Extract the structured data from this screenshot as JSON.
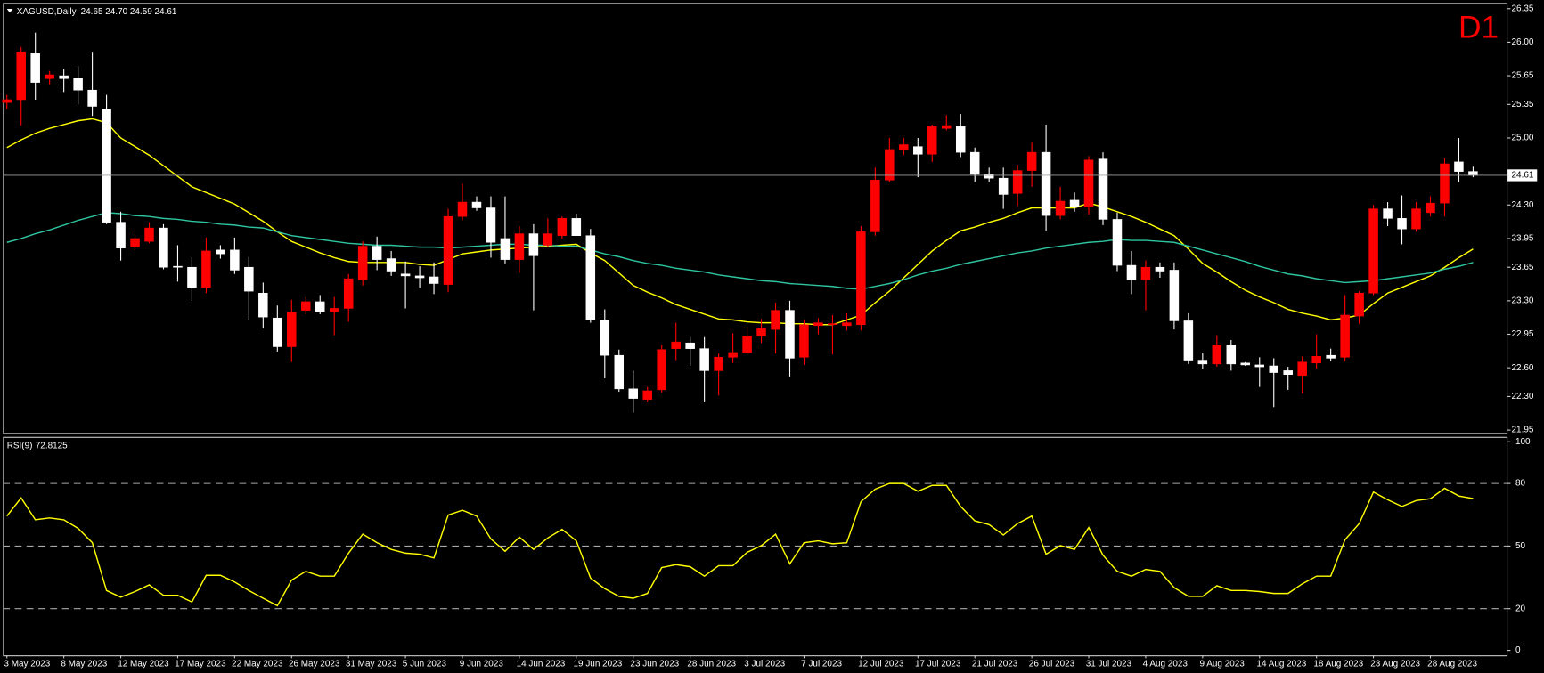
{
  "chart_data": [
    {
      "type": "candlestick",
      "title": "XAGUSD,Daily",
      "quote": "24.65 24.70 24.59 24.61",
      "timeframe": "D1",
      "open": [
        25.37,
        25.4,
        25.88,
        25.62,
        25.65,
        25.62,
        25.5,
        25.3,
        24.12,
        23.86,
        23.92,
        24.06,
        23.66,
        23.65,
        23.44,
        23.83,
        23.83,
        23.65,
        23.38,
        23.12,
        22.82,
        23.2,
        23.29,
        23.19,
        23.22,
        23.52,
        23.87,
        23.74,
        23.58,
        23.56,
        23.55,
        23.47,
        24.18,
        24.33,
        24.27,
        23.95,
        23.73,
        24.0,
        23.88,
        23.98,
        24.16,
        23.98,
        23.1,
        22.73,
        22.38,
        22.27,
        22.37,
        22.8,
        22.86,
        22.8,
        22.57,
        22.71,
        22.76,
        22.93,
        23.0,
        23.2,
        22.71,
        23.04,
        23.05,
        23.04,
        23.05,
        24.02,
        24.56,
        24.88,
        24.91,
        24.83,
        25.1,
        25.12,
        24.85,
        24.62,
        24.58,
        24.42,
        24.66,
        24.85,
        24.19,
        24.35,
        24.28,
        24.78,
        24.15,
        23.67,
        23.52,
        23.65,
        23.62,
        23.09,
        22.68,
        22.64,
        22.84,
        22.65,
        22.63,
        22.62,
        22.57,
        22.52,
        22.65,
        22.73,
        22.71,
        23.14,
        23.38,
        24.26,
        24.16,
        24.05,
        24.22,
        24.32,
        24.75,
        24.65
      ],
      "high": [
        25.45,
        25.95,
        26.1,
        25.7,
        25.72,
        25.75,
        25.9,
        25.45,
        24.23,
        24.0,
        24.12,
        24.1,
        23.88,
        23.76,
        23.96,
        23.88,
        23.96,
        23.76,
        23.49,
        23.25,
        23.31,
        23.34,
        23.36,
        23.34,
        23.58,
        23.92,
        23.97,
        23.82,
        23.71,
        23.66,
        23.7,
        24.26,
        24.52,
        24.39,
        24.39,
        24.39,
        24.08,
        24.1,
        24.16,
        24.18,
        24.21,
        24.05,
        23.21,
        22.79,
        22.57,
        22.4,
        22.84,
        23.07,
        22.92,
        22.92,
        22.75,
        22.96,
        23.03,
        23.11,
        23.28,
        23.3,
        23.1,
        23.12,
        23.15,
        23.17,
        24.08,
        24.69,
        25.0,
        25.0,
        25.0,
        25.14,
        25.24,
        25.25,
        24.9,
        24.69,
        24.69,
        24.72,
        24.95,
        25.14,
        24.49,
        24.43,
        24.81,
        24.85,
        24.22,
        23.82,
        23.72,
        23.7,
        23.7,
        23.17,
        22.76,
        22.94,
        22.89,
        22.66,
        22.71,
        22.7,
        22.61,
        22.72,
        22.95,
        22.8,
        23.36,
        23.4,
        24.3,
        24.33,
        24.4,
        24.33,
        24.39,
        24.79,
        25.0,
        24.7
      ],
      "low": [
        25.3,
        25.13,
        25.4,
        25.56,
        25.48,
        25.35,
        25.23,
        24.1,
        23.72,
        23.83,
        23.9,
        23.63,
        23.5,
        23.3,
        23.38,
        23.74,
        23.58,
        23.1,
        23.01,
        22.77,
        22.66,
        23.16,
        23.16,
        22.94,
        23.08,
        23.46,
        23.62,
        23.56,
        23.22,
        23.43,
        23.37,
        23.39,
        24.14,
        24.24,
        23.75,
        23.69,
        23.59,
        23.2,
        23.86,
        23.95,
        23.98,
        23.07,
        22.49,
        22.35,
        22.13,
        22.24,
        22.34,
        22.68,
        22.62,
        22.24,
        22.31,
        22.65,
        22.73,
        22.86,
        22.75,
        22.51,
        22.63,
        22.95,
        22.74,
        22.99,
        22.99,
        23.98,
        24.54,
        24.82,
        24.59,
        24.75,
        25.08,
        24.8,
        24.54,
        24.54,
        24.26,
        24.29,
        24.49,
        24.03,
        24.15,
        24.23,
        24.2,
        24.09,
        23.61,
        23.37,
        23.2,
        23.54,
        23.0,
        22.64,
        22.59,
        22.61,
        22.57,
        22.62,
        22.4,
        22.19,
        22.37,
        22.33,
        22.59,
        22.67,
        22.67,
        23.06,
        23.36,
        24.08,
        23.89,
        24.02,
        24.18,
        24.18,
        24.54,
        24.59
      ],
      "close": [
        25.4,
        25.9,
        25.58,
        25.66,
        25.62,
        25.5,
        25.33,
        24.12,
        23.85,
        23.95,
        24.06,
        23.65,
        23.65,
        23.44,
        23.82,
        23.79,
        23.62,
        23.4,
        23.13,
        22.82,
        23.18,
        23.29,
        23.19,
        23.22,
        23.53,
        23.87,
        23.73,
        23.61,
        23.56,
        23.54,
        23.48,
        24.18,
        24.33,
        24.27,
        23.91,
        23.73,
        24.0,
        23.77,
        24.0,
        24.16,
        23.98,
        23.1,
        22.73,
        22.38,
        22.28,
        22.36,
        22.79,
        22.87,
        22.8,
        22.57,
        22.71,
        22.76,
        22.93,
        23.01,
        23.2,
        22.7,
        23.05,
        23.07,
        23.06,
        23.07,
        24.02,
        24.56,
        24.88,
        24.93,
        24.83,
        25.12,
        25.13,
        24.85,
        24.62,
        24.58,
        24.41,
        24.66,
        24.85,
        24.19,
        24.34,
        24.28,
        24.77,
        24.15,
        23.67,
        23.52,
        23.65,
        23.61,
        23.09,
        22.68,
        22.64,
        22.84,
        22.64,
        22.63,
        22.61,
        22.55,
        22.53,
        22.66,
        22.72,
        22.7,
        23.15,
        23.38,
        24.26,
        24.16,
        24.05,
        24.26,
        24.32,
        24.73,
        24.65,
        24.61
      ],
      "up_color": "#ff0000",
      "down_color": "#ffffff",
      "series": [
        {
          "color": "#ffff00",
          "values": [
            24.9,
            24.98,
            25.05,
            25.1,
            25.14,
            25.18,
            25.2,
            25.16,
            25.0,
            24.91,
            24.82,
            24.71,
            24.6,
            24.49,
            24.43,
            24.37,
            24.31,
            24.22,
            24.13,
            24.02,
            23.92,
            23.86,
            23.8,
            23.75,
            23.71,
            23.7,
            23.7,
            23.7,
            23.7,
            23.68,
            23.67,
            23.73,
            23.79,
            23.81,
            23.83,
            23.84,
            23.85,
            23.86,
            23.87,
            23.88,
            23.89,
            23.8,
            23.72,
            23.59,
            23.46,
            23.39,
            23.33,
            23.26,
            23.21,
            23.16,
            23.11,
            23.1,
            23.08,
            23.07,
            23.07,
            23.06,
            23.06,
            23.05,
            23.05,
            23.1,
            23.15,
            23.28,
            23.4,
            23.54,
            23.68,
            23.82,
            23.93,
            24.03,
            24.07,
            24.12,
            24.16,
            24.22,
            24.27,
            24.27,
            24.27,
            24.27,
            24.32,
            24.28,
            24.23,
            24.18,
            24.12,
            24.05,
            23.98,
            23.84,
            23.69,
            23.6,
            23.5,
            23.41,
            23.34,
            23.28,
            23.21,
            23.17,
            23.14,
            23.1,
            23.12,
            23.15,
            23.27,
            23.38,
            23.44,
            23.5,
            23.56,
            23.65,
            23.75,
            23.84
          ]
        },
        {
          "color": "#2ec4a0",
          "values": [
            23.91,
            23.95,
            24.0,
            24.04,
            24.09,
            24.14,
            24.18,
            24.22,
            24.21,
            24.19,
            24.18,
            24.16,
            24.15,
            24.13,
            24.12,
            24.1,
            24.09,
            24.07,
            24.06,
            24.02,
            23.98,
            23.96,
            23.94,
            23.92,
            23.9,
            23.89,
            23.88,
            23.88,
            23.87,
            23.86,
            23.86,
            23.85,
            23.86,
            23.87,
            23.88,
            23.89,
            23.89,
            23.88,
            23.88,
            23.87,
            23.87,
            23.83,
            23.79,
            23.76,
            23.72,
            23.69,
            23.67,
            23.64,
            23.62,
            23.6,
            23.57,
            23.55,
            23.53,
            23.51,
            23.5,
            23.48,
            23.47,
            23.46,
            23.45,
            23.43,
            23.42,
            23.45,
            23.48,
            23.52,
            23.57,
            23.61,
            23.64,
            23.68,
            23.71,
            23.74,
            23.77,
            23.8,
            23.82,
            23.85,
            23.87,
            23.89,
            23.91,
            23.92,
            23.94,
            23.93,
            23.93,
            23.92,
            23.91,
            23.87,
            23.83,
            23.79,
            23.75,
            23.71,
            23.66,
            23.62,
            23.58,
            23.56,
            23.53,
            23.51,
            23.49,
            23.5,
            23.51,
            23.53,
            23.55,
            23.57,
            23.59,
            23.63,
            23.66,
            23.7
          ]
        }
      ],
      "ylim": [
        21.92,
        26.41
      ],
      "yticks": [
        26.35,
        {
          "value": 26,
          "label": "26.00"
        },
        25.65,
        25.35,
        {
          "value": 25,
          "label": "25.00"
        },
        {
          "value": 24.3,
          "label": "24.30"
        },
        23.95,
        23.65,
        {
          "value": 23.3,
          "label": "23.30"
        },
        22.95,
        {
          "value": 22.6,
          "label": "22.60"
        },
        {
          "value": 22.3,
          "label": "22.30"
        },
        21.95
      ],
      "last_price": 24.61,
      "grid": false
    },
    {
      "type": "line",
      "title": "RSI(9)",
      "categories": [
        "3 May 2023",
        null,
        null,
        null,
        "8 May 2023",
        null,
        null,
        null,
        "12 May 2023",
        null,
        null,
        null,
        "17 May 2023",
        null,
        null,
        null,
        "22 May 2023",
        null,
        null,
        null,
        "26 May 2023",
        null,
        null,
        null,
        "31 May 2023",
        null,
        null,
        null,
        "5 Jun 2023",
        null,
        null,
        null,
        "9 Jun 2023",
        null,
        null,
        null,
        "14 Jun 2023",
        null,
        null,
        null,
        "19 Jun 2023",
        null,
        null,
        null,
        "23 Jun 2023",
        null,
        null,
        null,
        "28 Jun 2023",
        null,
        null,
        null,
        "3 Jul 2023",
        null,
        null,
        null,
        "7 Jul 2023",
        null,
        null,
        null,
        "12 Jul 2023",
        null,
        null,
        null,
        "17 Jul 2023",
        null,
        null,
        null,
        "21 Jul 2023",
        null,
        null,
        null,
        "26 Jul 2023",
        null,
        null,
        null,
        "31 Jul 2023",
        null,
        null,
        null,
        "4 Aug 2023",
        null,
        null,
        null,
        "9 Aug 2023",
        null,
        null,
        null,
        "14 Aug 2023",
        null,
        null,
        null,
        "18 Aug 2023",
        null,
        null,
        null,
        "23 Aug 2023",
        null,
        null,
        null,
        "28 Aug 2023",
        null,
        null,
        null
      ],
      "values": [
        64.4,
        73.1,
        62.6,
        63.5,
        62.6,
        58.5,
        51.6,
        28.7,
        25.5,
        28.2,
        31.4,
        26.4,
        26.4,
        23.2,
        36.0,
        36.0,
        32.8,
        28.7,
        25.0,
        21.4,
        33.7,
        37.9,
        35.6,
        35.6,
        46.6,
        55.7,
        51.6,
        48.4,
        46.6,
        46.1,
        44.3,
        64.9,
        67.2,
        64.4,
        53.4,
        47.5,
        54.3,
        48.4,
        53.9,
        58.0,
        52.5,
        34.7,
        29.6,
        25.9,
        25.0,
        27.3,
        39.7,
        41.1,
        40.1,
        35.6,
        40.6,
        40.6,
        47.0,
        50.2,
        55.7,
        41.5,
        51.6,
        52.5,
        51.1,
        51.6,
        71.3,
        77.3,
        80.0,
        80.0,
        76.3,
        79.1,
        79.1,
        69.0,
        62.1,
        60.3,
        55.3,
        60.8,
        64.4,
        46.1,
        50.2,
        48.4,
        58.9,
        45.6,
        37.9,
        35.6,
        38.8,
        37.9,
        30.1,
        25.9,
        25.9,
        31.0,
        28.7,
        28.7,
        28.2,
        27.3,
        27.3,
        31.9,
        35.6,
        35.6,
        53.0,
        60.8,
        75.9,
        72.2,
        69.0,
        71.8,
        72.7,
        77.7,
        74.0,
        72.8125
      ],
      "color": "#ffff00",
      "ylim": [
        0,
        100
      ],
      "yticks": [
        100,
        80,
        50,
        20,
        0
      ],
      "levels": [
        80,
        50,
        20
      ]
    }
  ]
}
